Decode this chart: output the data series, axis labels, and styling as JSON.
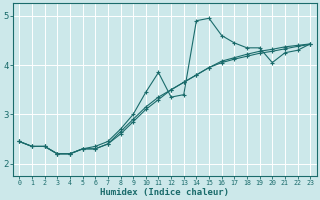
{
  "title": "",
  "xlabel": "Humidex (Indice chaleur)",
  "bg_color": "#cce8ea",
  "line_color": "#1a6b6b",
  "grid_color": "#ffffff",
  "x_ticks": [
    0,
    1,
    2,
    3,
    4,
    5,
    6,
    7,
    8,
    9,
    10,
    11,
    12,
    13,
    14,
    15,
    16,
    17,
    18,
    19,
    20,
    21,
    22,
    23
  ],
  "y_ticks": [
    2,
    3,
    4,
    5
  ],
  "ylim": [
    1.75,
    5.25
  ],
  "xlim": [
    -0.5,
    23.5
  ],
  "line1_y": [
    2.45,
    2.35,
    2.35,
    2.2,
    2.2,
    2.3,
    2.3,
    2.4,
    2.65,
    2.9,
    3.15,
    3.35,
    3.5,
    3.65,
    3.8,
    3.95,
    4.05,
    4.12,
    4.18,
    4.24,
    4.28,
    4.33,
    4.38,
    4.42
  ],
  "line2_y": [
    2.45,
    2.35,
    2.35,
    2.2,
    2.2,
    2.3,
    2.3,
    2.4,
    2.6,
    2.85,
    3.1,
    3.3,
    3.5,
    3.65,
    3.8,
    3.95,
    4.08,
    4.15,
    4.22,
    4.28,
    4.32,
    4.37,
    4.4,
    4.43
  ],
  "line3_y": [
    2.45,
    2.35,
    2.35,
    2.2,
    2.2,
    2.3,
    2.35,
    2.45,
    2.7,
    3.0,
    3.45,
    3.85,
    3.35,
    3.4,
    4.9,
    4.95,
    4.6,
    4.45,
    4.35,
    4.35,
    4.05,
    4.25,
    4.3,
    4.43
  ]
}
